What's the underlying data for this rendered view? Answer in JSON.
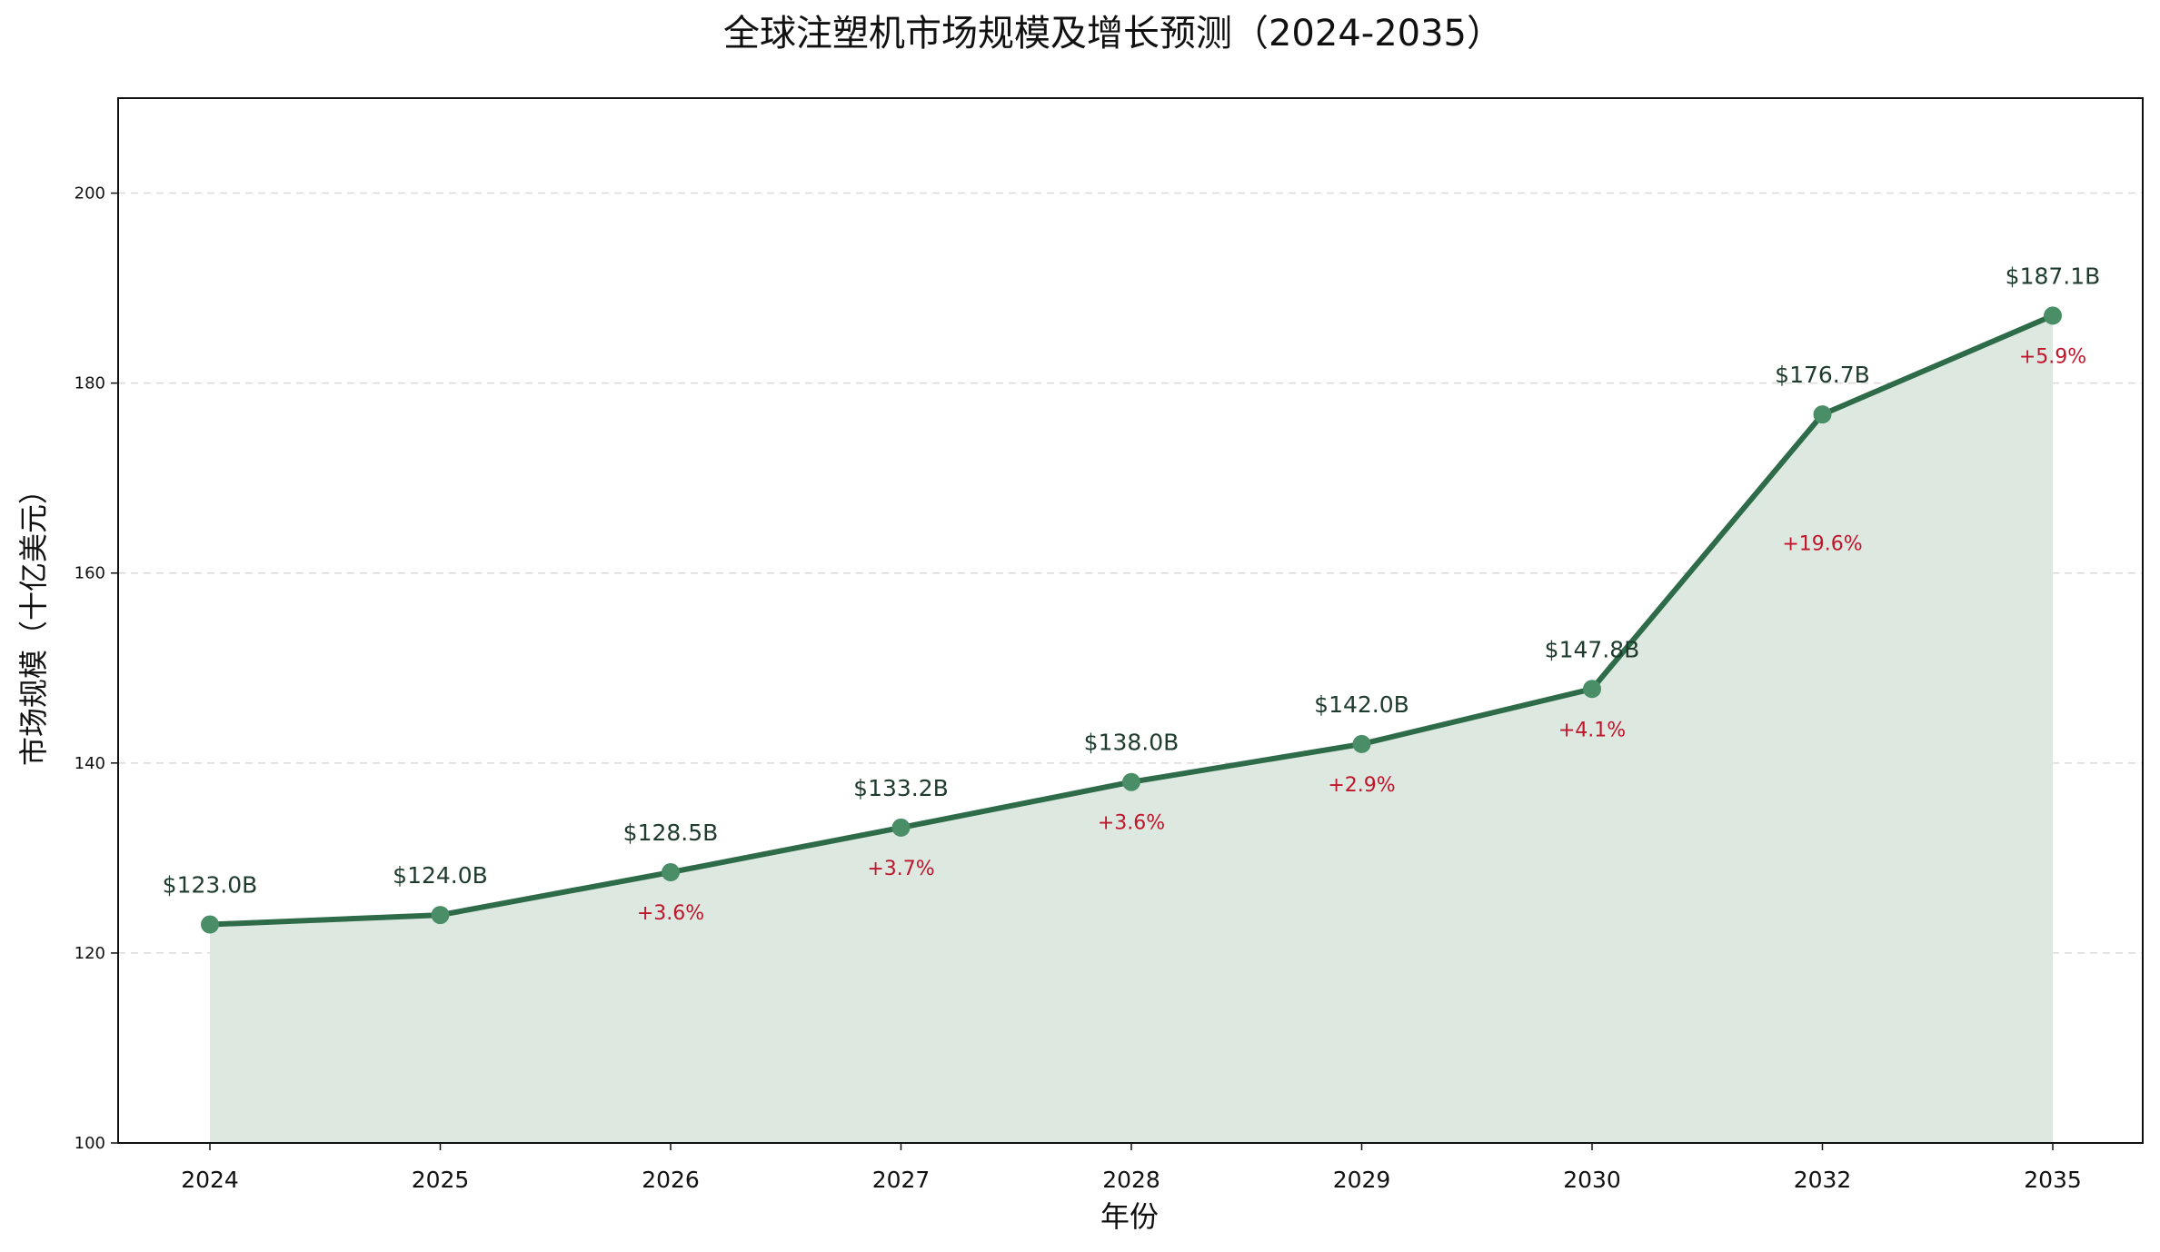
{
  "chart_data": {
    "type": "line",
    "title": "全球注塑机市场规模及增长预测（2024-2035）",
    "xlabel": "年份",
    "ylabel": "市场规模（十亿美元）",
    "ylim": [
      100,
      210
    ],
    "yticks": [
      100,
      120,
      140,
      160,
      180,
      200
    ],
    "categories": [
      "2024",
      "2025",
      "2026",
      "2027",
      "2028",
      "2029",
      "2030",
      "2032",
      "2035"
    ],
    "values": [
      123.0,
      124.0,
      128.5,
      133.2,
      138.0,
      142.0,
      147.8,
      176.7,
      187.1
    ],
    "value_labels": [
      "$123.0B",
      "$124.0B",
      "$128.5B",
      "$133.2B",
      "$138.0B",
      "$142.0B",
      "$147.8B",
      "$176.7B",
      "$187.1B"
    ],
    "growth_labels": [
      "",
      "",
      "+3.6%",
      "+3.7%",
      "+3.6%",
      "+2.9%",
      "+4.1%",
      "+19.6%",
      "+5.9%"
    ],
    "grid": "horizontal dashed",
    "filled_area": true,
    "colors": {
      "line": "#2e6b48",
      "marker": "#4a8e68",
      "fill": "#dde8e1",
      "value_label": "#1e3b2e",
      "growth_label": "#c0152a",
      "grid": "#d9d9d9"
    }
  }
}
